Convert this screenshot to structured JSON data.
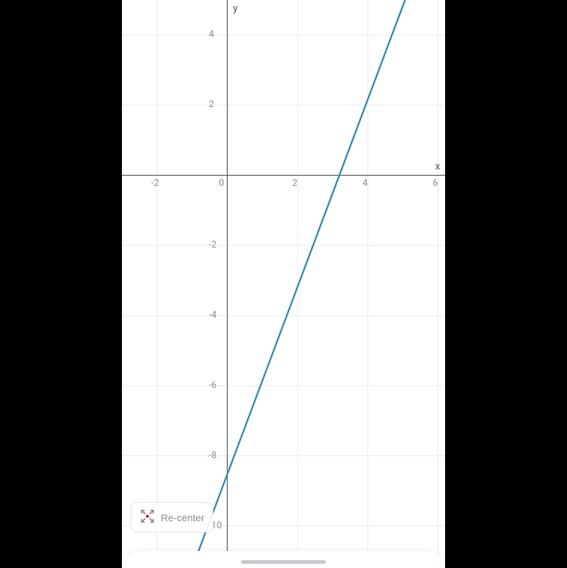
{
  "frame": {
    "outer_bg": "#000000",
    "inner_bg": "#ffffff",
    "inner_width": 456,
    "inner_height": 801
  },
  "chart": {
    "type": "line",
    "xlim": [
      -3,
      6.2
    ],
    "ylim": [
      -11.2,
      5
    ],
    "x_axis_label": "x",
    "y_axis_label": "y",
    "x_ticks": [
      -2,
      0,
      2,
      4,
      6
    ],
    "y_ticks": [
      -10,
      -8,
      -6,
      -4,
      -2,
      0,
      2,
      4
    ],
    "grid_color": "#e9e9ee",
    "axis_color": "#3a3a3c",
    "tick_label_color": "#8e8e93",
    "tick_fontsize": 13,
    "axis_label_fontsize": 14,
    "background_color": "#ffffff",
    "line": {
      "points": [
        [
          -1,
          -11.2
        ],
        [
          5.06,
          5
        ]
      ],
      "color": "#3b8fb2",
      "width": 2.5
    }
  },
  "controls": {
    "recenter_label": "Re-center",
    "recenter_dot_color": "#d0021b",
    "recenter_arrow_color": "#8e8e93"
  }
}
